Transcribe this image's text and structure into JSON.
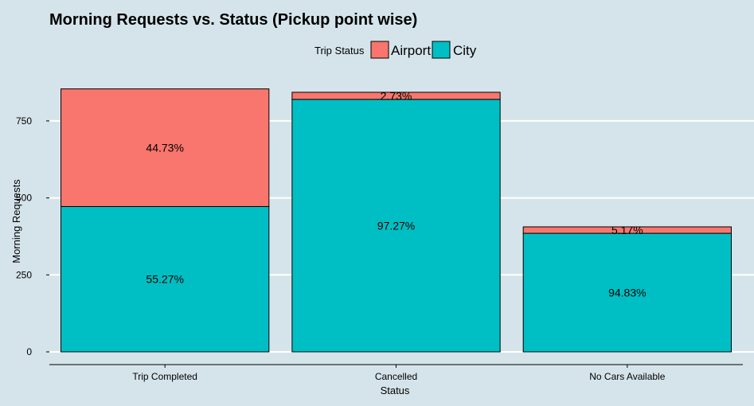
{
  "chart_data": {
    "type": "bar",
    "stacked": true,
    "title": "Morning Requests vs. Status (Pickup point wise)",
    "xlabel": "Status",
    "ylabel": "Morning Requests",
    "categories": [
      "Trip Completed",
      "Cancelled",
      "No Cars Available"
    ],
    "series": [
      {
        "name": "Airport",
        "values": [
          382,
          23,
          21
        ],
        "labels": [
          "44.73%",
          "2.73%",
          "5.17%"
        ]
      },
      {
        "name": "City",
        "values": [
          472,
          820,
          385
        ],
        "labels": [
          "55.27%",
          "97.27%",
          "94.83%"
        ]
      }
    ],
    "ylim": [
      0,
      880
    ],
    "yticks": [
      0,
      250,
      500,
      750
    ],
    "grid": true,
    "legend": {
      "title": "Trip Status",
      "position": "top"
    },
    "colors": {
      "Airport": "#f8766d",
      "City": "#00bfc4",
      "background": "#d5e4eb"
    }
  }
}
